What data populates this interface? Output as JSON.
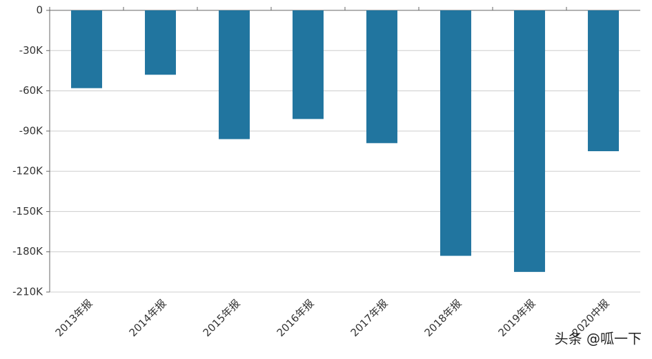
{
  "chart_data": {
    "type": "bar",
    "categories": [
      "2013年报",
      "2014年报",
      "2015年报",
      "2016年报",
      "2017年报",
      "2018年报",
      "2019年报",
      "2020中报"
    ],
    "values": [
      -58000,
      -48000,
      -96000,
      -81000,
      -99000,
      -183000,
      -195000,
      -105000
    ],
    "color": "#21759f",
    "ylim": [
      -210000,
      0
    ],
    "yticks": [
      0,
      {
        "value": -30000,
        "label": "-30K"
      },
      {
        "value": -60000,
        "label": "-60K"
      },
      {
        "value": -90000,
        "label": "-90K"
      },
      {
        "value": -120000,
        "label": "-120K"
      },
      {
        "value": -150000,
        "label": "-150K"
      },
      {
        "value": -180000,
        "label": "-180K"
      },
      {
        "value": -210000,
        "label": "-210K"
      }
    ],
    "grid": true,
    "watermark": "头条 @呱一下"
  }
}
